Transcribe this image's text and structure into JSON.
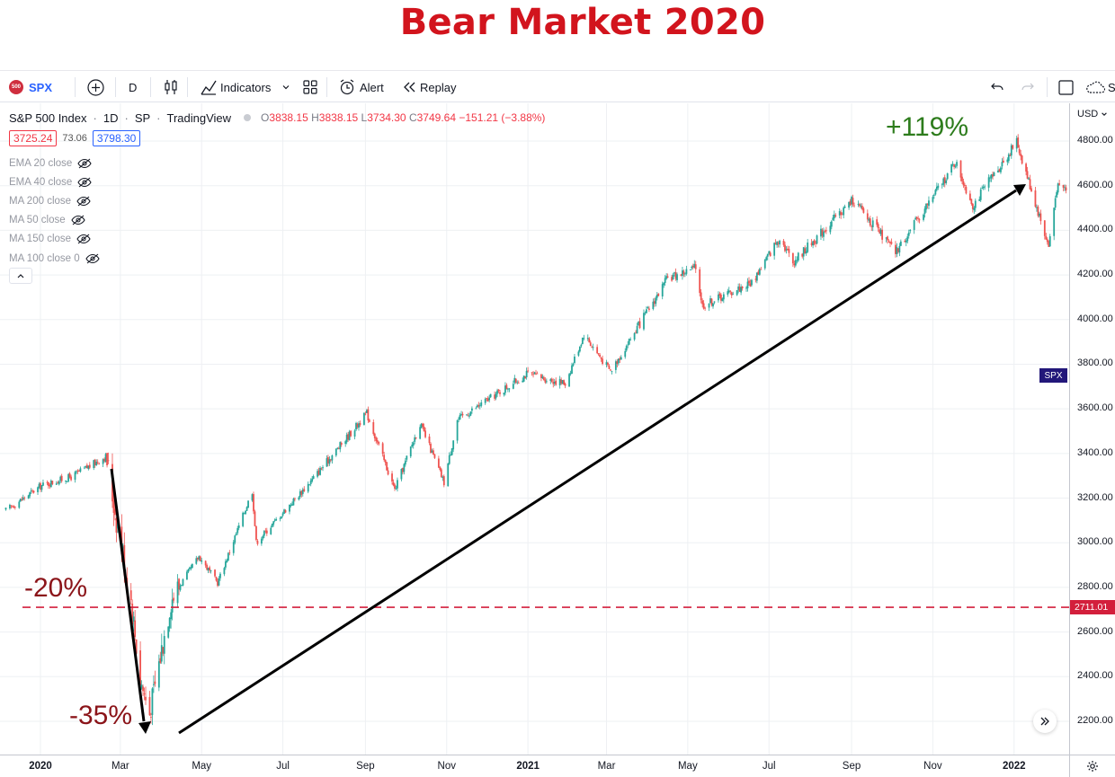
{
  "banner": {
    "title": "Bear Market 2020"
  },
  "toolbar": {
    "symbol_badge": "500",
    "symbol": "SPX",
    "interval": "D",
    "indicators_label": "Indicators",
    "alert_label": "Alert",
    "replay_label": "Replay",
    "cut_off_text": "S"
  },
  "legend": {
    "name": "S&P 500 Index",
    "interval": "1D",
    "exchange": "SP",
    "source": "TradingView",
    "o_key": "O",
    "o": "3838.15",
    "h_key": "H",
    "h": "3838.15",
    "l_key": "L",
    "l": "3734.30",
    "c_key": "C",
    "c": "3749.64",
    "change": "−151.21 (−3.88%)",
    "bid": "3725.24",
    "spread": "73.06",
    "ask": "3798.30",
    "indicators": [
      "EMA 20 close",
      "EMA 40 close",
      "MA 200 close",
      "MA 50 close",
      "MA 150 close",
      "MA 100 close 0"
    ]
  },
  "price_axis": {
    "currency": "USD",
    "ticks": [
      "4800.00",
      "4600.00",
      "4400.00",
      "4200.00",
      "4000.00",
      "3800.00",
      "3600.00",
      "3400.00",
      "3200.00",
      "3000.00",
      "2800.00",
      "2600.00",
      "2400.00",
      "2200.00"
    ],
    "symbol_label": "SPX",
    "line_label": "2711.01"
  },
  "time_axis": {
    "labels": [
      {
        "text": "2020",
        "bold": true
      },
      {
        "text": "Mar",
        "bold": false
      },
      {
        "text": "May",
        "bold": false
      },
      {
        "text": "Jul",
        "bold": false
      },
      {
        "text": "Sep",
        "bold": false
      },
      {
        "text": "Nov",
        "bold": false
      },
      {
        "text": "2021",
        "bold": true
      },
      {
        "text": "Mar",
        "bold": false
      },
      {
        "text": "May",
        "bold": false
      },
      {
        "text": "Jul",
        "bold": false
      },
      {
        "text": "Sep",
        "bold": false
      },
      {
        "text": "Nov",
        "bold": false
      },
      {
        "text": "2022",
        "bold": true
      }
    ]
  },
  "annotations": {
    "drop_20": "-20%",
    "drop_35": "-35%",
    "gain": "+119%"
  },
  "colors": {
    "title": "#d2141d",
    "up": "#26a69a",
    "down": "#ef5350",
    "dashed_line": "#d31f3c",
    "gain": "#2d7c1c",
    "drop": "#8b1419",
    "symbol_badge": "#cf2e3e",
    "symbol_link": "#2962ff"
  },
  "chart_data": {
    "type": "candlestick",
    "title": "S&P 500 Index",
    "y_range": [
      2150,
      4900
    ],
    "x_range": [
      "2019-12-05",
      "2022-02-10"
    ],
    "horizontal_line": 2711.01,
    "key_points": [
      {
        "date": "2019-12-06",
        "close": 3145
      },
      {
        "date": "2020-01-02",
        "close": 3257
      },
      {
        "date": "2020-01-24",
        "close": 3295
      },
      {
        "date": "2020-02-19",
        "close": 3386
      },
      {
        "date": "2020-03-09",
        "close": 2746
      },
      {
        "date": "2020-03-16",
        "close": 2386
      },
      {
        "date": "2020-03-23",
        "close": 2237
      },
      {
        "date": "2020-04-08",
        "close": 2749
      },
      {
        "date": "2020-04-29",
        "close": 2939
      },
      {
        "date": "2020-05-13",
        "close": 2820
      },
      {
        "date": "2020-06-08",
        "close": 3232
      },
      {
        "date": "2020-06-11",
        "close": 3002
      },
      {
        "date": "2020-07-22",
        "close": 3276
      },
      {
        "date": "2020-09-02",
        "close": 3580
      },
      {
        "date": "2020-09-23",
        "close": 3237
      },
      {
        "date": "2020-10-12",
        "close": 3534
      },
      {
        "date": "2020-10-30",
        "close": 3270
      },
      {
        "date": "2020-11-09",
        "close": 3550
      },
      {
        "date": "2020-12-31",
        "close": 3756
      },
      {
        "date": "2021-01-29",
        "close": 3714
      },
      {
        "date": "2021-02-12",
        "close": 3934
      },
      {
        "date": "2021-03-04",
        "close": 3768
      },
      {
        "date": "2021-04-16",
        "close": 4185
      },
      {
        "date": "2021-05-07",
        "close": 4232
      },
      {
        "date": "2021-05-12",
        "close": 4063
      },
      {
        "date": "2021-06-18",
        "close": 4166
      },
      {
        "date": "2021-07-09",
        "close": 4370
      },
      {
        "date": "2021-07-19",
        "close": 4258
      },
      {
        "date": "2021-09-02",
        "close": 4537
      },
      {
        "date": "2021-10-04",
        "close": 4300
      },
      {
        "date": "2021-11-18",
        "close": 4705
      },
      {
        "date": "2021-12-01",
        "close": 4513
      },
      {
        "date": "2022-01-03",
        "close": 4796
      },
      {
        "date": "2022-01-27",
        "close": 4326
      },
      {
        "date": "2022-02-02",
        "close": 4589
      },
      {
        "date": "2022-02-09",
        "close": 4587
      }
    ]
  }
}
